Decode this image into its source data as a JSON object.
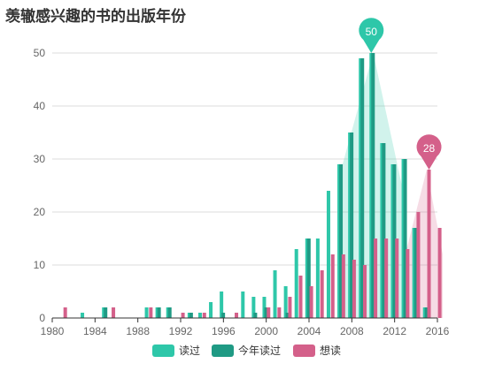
{
  "chart_data": {
    "type": "bar",
    "title": "羡辙感兴趣的书的出版年份",
    "xlabel": "",
    "ylabel": "",
    "xlim": [
      1980,
      2016
    ],
    "ylim": [
      0,
      50
    ],
    "x_ticks": [
      1980,
      1984,
      1988,
      1992,
      1996,
      2000,
      2004,
      2008,
      2012,
      2016
    ],
    "y_ticks": [
      0,
      10,
      20,
      30,
      40,
      50
    ],
    "grid": true,
    "legend_position": "bottom",
    "series": [
      {
        "name": "读过",
        "color": "#2ec7a9",
        "points": [
          [
            1983,
            1
          ],
          [
            1985,
            2
          ],
          [
            1989,
            2
          ],
          [
            1990,
            2
          ],
          [
            1991,
            2
          ],
          [
            1993,
            1
          ],
          [
            1994,
            1
          ],
          [
            1995,
            3
          ],
          [
            1996,
            5
          ],
          [
            1998,
            5
          ],
          [
            1999,
            4
          ],
          [
            2000,
            4
          ],
          [
            2001,
            9
          ],
          [
            2002,
            6
          ],
          [
            2003,
            13
          ],
          [
            2004,
            15
          ],
          [
            2005,
            15
          ],
          [
            2006,
            24
          ],
          [
            2007,
            29
          ],
          [
            2008,
            35
          ],
          [
            2009,
            49
          ],
          [
            2010,
            50
          ],
          [
            2011,
            33
          ],
          [
            2012,
            29
          ],
          [
            2013,
            30
          ],
          [
            2014,
            17
          ],
          [
            2015,
            2
          ]
        ]
      },
      {
        "name": "今年读过",
        "color": "#1f9a84",
        "points": [
          [
            1985,
            2
          ],
          [
            1990,
            2
          ],
          [
            1991,
            2
          ],
          [
            1993,
            1
          ],
          [
            1996,
            1
          ],
          [
            1999,
            1
          ],
          [
            2000,
            2
          ],
          [
            2002,
            1
          ],
          [
            2004,
            15
          ],
          [
            2007,
            29
          ],
          [
            2008,
            35
          ],
          [
            2009,
            49
          ],
          [
            2010,
            50
          ],
          [
            2011,
            33
          ],
          [
            2012,
            29
          ],
          [
            2013,
            30
          ],
          [
            2014,
            17
          ],
          [
            2015,
            2
          ]
        ]
      },
      {
        "name": "想读",
        "color": "#d4608a",
        "points": [
          [
            1981,
            2
          ],
          [
            1985.5,
            2
          ],
          [
            1989,
            2
          ],
          [
            1992,
            1
          ],
          [
            1994,
            1
          ],
          [
            1997,
            1
          ],
          [
            2000,
            2
          ],
          [
            2001,
            2
          ],
          [
            2002,
            4
          ],
          [
            2003,
            8
          ],
          [
            2004,
            6
          ],
          [
            2005,
            9
          ],
          [
            2006,
            12
          ],
          [
            2007,
            12
          ],
          [
            2008,
            11
          ],
          [
            2009,
            10
          ],
          [
            2010,
            15
          ],
          [
            2011,
            15
          ],
          [
            2012,
            15
          ],
          [
            2013,
            13
          ],
          [
            2014,
            20
          ],
          [
            2015,
            28
          ],
          [
            2016,
            17
          ]
        ]
      }
    ],
    "markers": [
      {
        "series": "读过",
        "x": 2010,
        "value": 50,
        "label": "50",
        "color": "#2ec7a9"
      },
      {
        "series": "想读",
        "x": 2015,
        "value": 28,
        "label": "28",
        "color": "#d4608a"
      }
    ],
    "peak_areas": [
      {
        "series": "读过",
        "points": [
          [
            2007,
            28
          ],
          [
            2010,
            50
          ],
          [
            2013,
            22
          ]
        ],
        "color": "#2ec7a9"
      },
      {
        "series": "想读",
        "points": [
          [
            2013,
            12
          ],
          [
            2015,
            28
          ],
          [
            2016.5,
            12
          ]
        ],
        "color": "#d4608a"
      }
    ]
  }
}
